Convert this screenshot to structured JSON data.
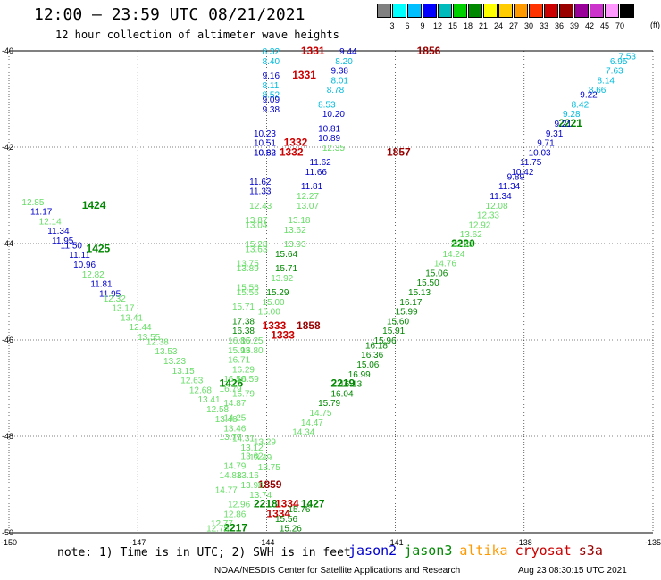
{
  "title": "12:00 – 23:59 UTC 08/21/2021",
  "subtitle": "12 hour collection of altimeter wave heights",
  "scale": {
    "colors": [
      "#808080",
      "#00ffff",
      "#00bfff",
      "#0000ff",
      "#00bbbb",
      "#00d000",
      "#008800",
      "#ffff00",
      "#ffcc00",
      "#ff9900",
      "#ff3300",
      "#cc0000",
      "#990000",
      "#990099",
      "#cc33cc",
      "#ff99ff",
      "#000000"
    ],
    "labels": [
      "3",
      "6",
      "9",
      "12",
      "15",
      "18",
      "21",
      "24",
      "27",
      "30",
      "33",
      "36",
      "39",
      "42",
      "45",
      "70"
    ],
    "unit": "(ft)"
  },
  "axes": {
    "lon_ticks": [
      "-150",
      "-147",
      "-144",
      "-141",
      "-138",
      "-135"
    ],
    "lat_ticks": [
      "-40",
      "-42",
      "-44",
      "-46",
      "-48",
      "-50"
    ]
  },
  "note": "note:  1)  Time is in UTC;  2)  SWH is in feet",
  "satellites": [
    {
      "name": "jason2",
      "color": "#0000cc"
    },
    {
      "name": "jason3",
      "color": "#008800"
    },
    {
      "name": "altika",
      "color": "#ff9900"
    },
    {
      "name": "cryosat",
      "color": "#cc0000"
    },
    {
      "name": "s3a",
      "color": "#990000"
    }
  ],
  "credit": "NOAA/NESDIS Center for Satellite Applications and Research",
  "timestamp": "Aug 23 08:30:15 UTC 2021",
  "tracks": [
    {
      "id": "t1424",
      "color": "#66dd66",
      "time_color": "#008800",
      "time": "1424",
      "time_lon": -148.3,
      "time_lat": -43.2,
      "points": [
        [
          -149.7,
          -43.2,
          "12.85",
          "#66dd66"
        ],
        [
          -149.5,
          -43.4,
          "11.17",
          "#0000cc"
        ],
        [
          -149.3,
          -43.6,
          "12.14",
          "#66dd66"
        ],
        [
          -149.1,
          -43.8,
          "11.34",
          "#0000cc"
        ],
        [
          -149.0,
          -44.0,
          "11.95",
          "#0000cc"
        ],
        [
          -148.8,
          -44.1,
          "11.50",
          "#0000cc"
        ],
        [
          -148.6,
          -44.3,
          "11.11",
          "#0000cc"
        ],
        [
          -148.5,
          -44.5,
          "10.96",
          "#0000cc"
        ],
        [
          -148.3,
          -44.7,
          "12.82",
          "#66dd66"
        ],
        [
          -148.1,
          -44.9,
          "11.81",
          "#0000cc"
        ],
        [
          -147.9,
          -45.1,
          "11.95",
          "#0000cc"
        ],
        [
          -147.8,
          -45.2,
          "12.32",
          "#66dd66"
        ],
        [
          -147.6,
          -45.4,
          "13.17",
          "#66dd66"
        ],
        [
          -147.4,
          -45.6,
          "13.41",
          "#66dd66"
        ],
        [
          -147.2,
          -45.8,
          "12.44",
          "#66dd66"
        ],
        [
          -147.0,
          -46.0,
          "13.55",
          "#66dd66"
        ],
        [
          -146.8,
          -46.1,
          "12.38",
          "#66dd66"
        ],
        [
          -146.6,
          -46.3,
          "13.53",
          "#66dd66"
        ],
        [
          -146.4,
          -46.5,
          "13.23",
          "#66dd66"
        ],
        [
          -146.2,
          -46.7,
          "13.15",
          "#66dd66"
        ],
        [
          -146.0,
          -46.9,
          "12.63",
          "#66dd66"
        ],
        [
          -145.8,
          -47.1,
          "12.68",
          "#66dd66"
        ],
        [
          -145.6,
          -47.3,
          "13.41",
          "#66dd66"
        ],
        [
          -145.4,
          -47.5,
          "12.58",
          "#66dd66"
        ],
        [
          -145.2,
          -47.7,
          "13.48",
          "#66dd66"
        ],
        [
          -145.0,
          -47.9,
          "13.46",
          "#66dd66"
        ],
        [
          -144.8,
          -48.1,
          "14.31",
          "#66dd66"
        ],
        [
          -144.6,
          -48.3,
          "13.12",
          "#66dd66"
        ],
        [
          -144.4,
          -48.5,
          "13.49",
          "#66dd66"
        ],
        [
          -144.2,
          -48.7,
          "13.75",
          "#66dd66"
        ]
      ]
    },
    {
      "id": "t1425",
      "color": "#008800",
      "time_color": "#008800",
      "time": "1425",
      "time_lon": -148.2,
      "time_lat": -44.1,
      "points": []
    },
    {
      "id": "t1426",
      "color": "#008800",
      "time_color": "#008800",
      "time": "1426",
      "time_lon": -145.1,
      "time_lat": -46.9,
      "points": []
    },
    {
      "id": "t1427",
      "color": "#008800",
      "time_color": "#008800",
      "time": "1427",
      "time_lon": -143.2,
      "time_lat": -49.4,
      "points": []
    },
    {
      "id": "t2220",
      "color": "#008800",
      "time_color": "#008800",
      "time": "2220",
      "time_lon": -139.7,
      "time_lat": -44.0,
      "points": []
    },
    {
      "id": "t2221",
      "color": "#008800",
      "time_color": "#008800",
      "time": "2221",
      "time_lon": -137.2,
      "time_lat": -41.5,
      "points": []
    },
    {
      "id": "t2219",
      "color": "#008800",
      "time_color": "#008800",
      "time": "2219",
      "time_lon": -142.5,
      "time_lat": -46.9,
      "points": []
    },
    {
      "id": "t2218",
      "color": "#008800",
      "time_color": "#008800",
      "time": "2218",
      "time_lon": -144.3,
      "time_lat": -49.4,
      "points": []
    },
    {
      "id": "t2217",
      "color": "#008800",
      "time_color": "#008800",
      "time": "2217",
      "time_lon": -145.0,
      "time_lat": -49.9,
      "points": []
    },
    {
      "id": "t1331",
      "color": "#cc0000",
      "time_color": "#cc0000",
      "time": "1331",
      "time_lon": -143.2,
      "time_lat": -40.0,
      "points": []
    },
    {
      "id": "t1331b",
      "color": "#cc0000",
      "time_color": "#cc0000",
      "time": "1331",
      "time_lon": -143.4,
      "time_lat": -40.5,
      "points": []
    },
    {
      "id": "t1332",
      "color": "#cc0000",
      "time_color": "#cc0000",
      "time": "1332",
      "time_lon": -143.6,
      "time_lat": -41.9,
      "points": []
    },
    {
      "id": "t1332b",
      "color": "#cc0000",
      "time_color": "#cc0000",
      "time": "1332",
      "time_lon": -143.7,
      "time_lat": -42.1,
      "points": []
    },
    {
      "id": "t1333",
      "color": "#cc0000",
      "time_color": "#cc0000",
      "time": "1333",
      "time_lon": -144.1,
      "time_lat": -45.7,
      "points": []
    },
    {
      "id": "t1333b",
      "color": "#cc0000",
      "time_color": "#cc0000",
      "time": "1333",
      "time_lon": -143.9,
      "time_lat": -45.9,
      "points": []
    },
    {
      "id": "t1334",
      "color": "#cc0000",
      "time_color": "#cc0000",
      "time": "1334",
      "time_lon": -143.8,
      "time_lat": -49.4,
      "points": []
    },
    {
      "id": "t1334b",
      "color": "#cc0000",
      "time_color": "#cc0000",
      "time": "1334",
      "time_lon": -144.0,
      "time_lat": -49.6,
      "points": []
    },
    {
      "id": "t1856",
      "color": "#990000",
      "time_color": "#990000",
      "time": "1856",
      "time_lon": -140.5,
      "time_lat": -40.0,
      "points": []
    },
    {
      "id": "t1857",
      "color": "#990000",
      "time_color": "#990000",
      "time": "1857",
      "time_lon": -141.2,
      "time_lat": -42.1,
      "points": []
    },
    {
      "id": "t1858",
      "color": "#990000",
      "time_color": "#990000",
      "time": "1858",
      "time_lon": -143.3,
      "time_lat": -45.7,
      "points": []
    },
    {
      "id": "t1859",
      "color": "#990000",
      "time_color": "#990000",
      "time": "1859",
      "time_lon": -144.2,
      "time_lat": -49.0,
      "points": []
    }
  ],
  "labels": [
    [
      "8.32",
      "#00bbdd",
      -144.1,
      -40.0
    ],
    [
      "8.40",
      "#00bbdd",
      -144.1,
      -40.2
    ],
    [
      "9.16",
      "#0000cc",
      -144.1,
      -40.5
    ],
    [
      "8.11",
      "#00bbdd",
      -144.1,
      -40.7
    ],
    [
      "8.52",
      "#00bbdd",
      -144.1,
      -40.9
    ],
    [
      "9.09",
      "#0000cc",
      -144.1,
      -41.0
    ],
    [
      "9.38",
      "#0000cc",
      -144.1,
      -41.2
    ],
    [
      "10.23",
      "#0000cc",
      -144.3,
      -41.7
    ],
    [
      "10.51",
      "#0000cc",
      -144.3,
      -41.9
    ],
    [
      "10.63",
      "#0000cc",
      -144.3,
      -42.1
    ],
    [
      "10.82",
      "#0000cc",
      -144.3,
      -42.1
    ],
    [
      "11.62",
      "#0000cc",
      -144.4,
      -42.7
    ],
    [
      "11.33",
      "#0000cc",
      -144.4,
      -42.9
    ],
    [
      "12.43",
      "#66dd66",
      -144.4,
      -43.2
    ],
    [
      "13.87",
      "#66dd66",
      -144.5,
      -43.5
    ],
    [
      "13.04",
      "#66dd66",
      -144.5,
      -43.6
    ],
    [
      "15.28",
      "#66dd66",
      -144.5,
      -44.0
    ],
    [
      "13.63",
      "#66dd66",
      -144.5,
      -44.1
    ],
    [
      "13.75",
      "#66dd66",
      -144.7,
      -44.4
    ],
    [
      "13.89",
      "#66dd66",
      -144.7,
      -44.5
    ],
    [
      "15.56",
      "#66dd66",
      -144.7,
      -44.9
    ],
    [
      "15.56",
      "#66dd66",
      -144.7,
      -45.0
    ],
    [
      "15.71",
      "#66dd66",
      -144.8,
      -45.3
    ],
    [
      "17.38",
      "#008800",
      -144.8,
      -45.6
    ],
    [
      "16.38",
      "#008800",
      -144.8,
      -45.8
    ],
    [
      "16.86",
      "#66dd66",
      -144.9,
      -46.0
    ],
    [
      "15.25",
      "#66dd66",
      -144.6,
      -46.0
    ],
    [
      "15.93",
      "#66dd66",
      -144.9,
      -46.2
    ],
    [
      "16.80",
      "#66dd66",
      -144.6,
      -46.2
    ],
    [
      "16.71",
      "#66dd66",
      -144.9,
      -46.4
    ],
    [
      "16.29",
      "#66dd66",
      -144.8,
      -46.6
    ],
    [
      "16.50",
      "#66dd66",
      -145.0,
      -46.8
    ],
    [
      "16.59",
      "#66dd66",
      -144.7,
      -46.8
    ],
    [
      "16.79",
      "#66dd66",
      -144.8,
      -47.1
    ],
    [
      "16.79",
      "#66dd66",
      -145.1,
      -47.0
    ],
    [
      "14.87",
      "#66dd66",
      -145.0,
      -47.3
    ],
    [
      "14.25",
      "#66dd66",
      -145.0,
      -47.6
    ],
    [
      "13.77",
      "#66dd66",
      -145.1,
      -48.0
    ],
    [
      "14.79",
      "#66dd66",
      -145.0,
      -48.6
    ],
    [
      "14.83",
      "#66dd66",
      -145.1,
      -48.8
    ],
    [
      "14.77",
      "#66dd66",
      -145.2,
      -49.1
    ],
    [
      "13.62",
      "#66dd66",
      -144.6,
      -48.4
    ],
    [
      "13.29",
      "#66dd66",
      -144.3,
      -48.1
    ],
    [
      "9.44",
      "#0000cc",
      -142.3,
      -40.0
    ],
    [
      "8.20",
      "#00bbdd",
      -142.4,
      -40.2
    ],
    [
      "9.38",
      "#0000cc",
      -142.5,
      -40.4
    ],
    [
      "8.01",
      "#00bbdd",
      -142.5,
      -40.6
    ],
    [
      "8.78",
      "#00bbdd",
      -142.6,
      -40.8
    ],
    [
      "8.53",
      "#00bbdd",
      -142.8,
      -41.1
    ],
    [
      "10.20",
      "#0000cc",
      -142.7,
      -41.3
    ],
    [
      "10.81",
      "#0000cc",
      -142.8,
      -41.6
    ],
    [
      "10.89",
      "#0000cc",
      -142.8,
      -41.8
    ],
    [
      "12.35",
      "#66dd66",
      -142.7,
      -42.0
    ],
    [
      "11.62",
      "#0000cc",
      -143.0,
      -42.3
    ],
    [
      "11.66",
      "#0000cc",
      -143.1,
      -42.5
    ],
    [
      "11.81",
      "#0000cc",
      -143.2,
      -42.8
    ],
    [
      "12.27",
      "#66dd66",
      -143.3,
      -43.0
    ],
    [
      "13.07",
      "#66dd66",
      -143.3,
      -43.2
    ],
    [
      "13.18",
      "#66dd66",
      -143.5,
      -43.5
    ],
    [
      "13.62",
      "#66dd66",
      -143.6,
      -43.7
    ],
    [
      "13.93",
      "#66dd66",
      -143.6,
      -44.0
    ],
    [
      "15.64",
      "#008800",
      -143.8,
      -44.2
    ],
    [
      "15.71",
      "#008800",
      -143.8,
      -44.5
    ],
    [
      "13.92",
      "#66dd66",
      -143.9,
      -44.7
    ],
    [
      "15.29",
      "#008800",
      -144.0,
      -45.0
    ],
    [
      "15.00",
      "#66dd66",
      -144.1,
      -45.2
    ],
    [
      "15.00",
      "#66dd66",
      -144.2,
      -45.4
    ],
    [
      "7.53",
      "#00bbdd",
      -135.8,
      -40.1
    ],
    [
      "6.95",
      "#00bbdd",
      -136.0,
      -40.2
    ],
    [
      "7.63",
      "#00bbdd",
      -136.1,
      -40.4
    ],
    [
      "8.14",
      "#00bbdd",
      -136.3,
      -40.6
    ],
    [
      "8.66",
      "#00bbdd",
      -136.5,
      -40.8
    ],
    [
      "9.22",
      "#0000cc",
      -136.7,
      -40.9
    ],
    [
      "8.42",
      "#00bbdd",
      -136.9,
      -41.1
    ],
    [
      "9.28",
      "#00bbdd",
      -137.1,
      -41.3
    ],
    [
      "9.21",
      "#0000cc",
      -137.3,
      -41.5
    ],
    [
      "9.31",
      "#0000cc",
      -137.5,
      -41.7
    ],
    [
      "9.71",
      "#0000cc",
      -137.7,
      -41.9
    ],
    [
      "10.03",
      "#0000cc",
      -137.9,
      -42.1
    ],
    [
      "11.75",
      "#0000cc",
      -138.1,
      -42.3
    ],
    [
      "10.42",
      "#0000cc",
      -138.3,
      -42.5
    ],
    [
      "9.89",
      "#0000cc",
      -138.4,
      -42.6
    ],
    [
      "11.34",
      "#0000cc",
      -138.6,
      -42.8
    ],
    [
      "11.34",
      "#0000cc",
      -138.8,
      -43.0
    ],
    [
      "12.08",
      "#66dd66",
      -138.9,
      -43.2
    ],
    [
      "12.33",
      "#66dd66",
      -139.1,
      -43.4
    ],
    [
      "12.92",
      "#66dd66",
      -139.3,
      -43.6
    ],
    [
      "13.62",
      "#66dd66",
      -139.5,
      -43.8
    ],
    [
      "13.63",
      "#66dd66",
      -139.7,
      -44.0
    ],
    [
      "14.24",
      "#66dd66",
      -139.9,
      -44.2
    ],
    [
      "14.76",
      "#66dd66",
      -140.1,
      -44.4
    ],
    [
      "15.06",
      "#008800",
      -140.3,
      -44.6
    ],
    [
      "15.50",
      "#008800",
      -140.5,
      -44.8
    ],
    [
      "15.13",
      "#008800",
      -140.7,
      -45.0
    ],
    [
      "16.17",
      "#008800",
      -140.9,
      -45.2
    ],
    [
      "15.99",
      "#008800",
      -141.0,
      -45.4
    ],
    [
      "15.60",
      "#008800",
      -141.2,
      -45.6
    ],
    [
      "15.91",
      "#008800",
      -141.3,
      -45.8
    ],
    [
      "15.96",
      "#008800",
      -141.5,
      -46.0
    ],
    [
      "16.18",
      "#008800",
      -141.7,
      -46.1
    ],
    [
      "16.36",
      "#008800",
      -141.8,
      -46.3
    ],
    [
      "15.06",
      "#008800",
      -141.9,
      -46.5
    ],
    [
      "16.99",
      "#008800",
      -142.1,
      -46.7
    ],
    [
      "16.13",
      "#008800",
      -142.3,
      -46.9
    ],
    [
      "16.04",
      "#008800",
      -142.5,
      -47.1
    ],
    [
      "15.79",
      "#008800",
      -142.8,
      -47.3
    ],
    [
      "14.75",
      "#66dd66",
      -143.0,
      -47.5
    ],
    [
      "14.47",
      "#66dd66",
      -143.2,
      -47.7
    ],
    [
      "14.34",
      "#66dd66",
      -143.4,
      -47.9
    ],
    [
      "13.74",
      "#66dd66",
      -144.4,
      -49.2
    ],
    [
      "12.96",
      "#66dd66",
      -144.9,
      -49.4
    ],
    [
      "12.86",
      "#66dd66",
      -145.0,
      -49.6
    ],
    [
      "12.77",
      "#66dd66",
      -145.3,
      -49.8
    ],
    [
      "12.75",
      "#66dd66",
      -145.4,
      -49.9
    ],
    [
      "15.76",
      "#008800",
      -143.5,
      -49.5
    ],
    [
      "15.56",
      "#008800",
      -143.8,
      -49.7
    ],
    [
      "15.26",
      "#008800",
      -143.7,
      -49.9
    ],
    [
      "13.98",
      "#66dd66",
      -144.6,
      -49.0
    ],
    [
      "13.16",
      "#66dd66",
      -144.7,
      -48.8
    ]
  ]
}
